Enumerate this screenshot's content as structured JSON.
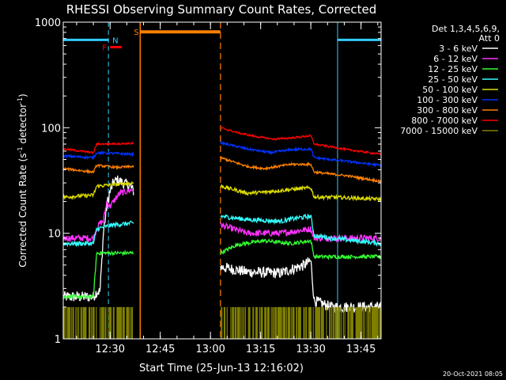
{
  "chart_data": {
    "type": "line",
    "title": "RHESSI Observing Summary Count Rates, Corrected",
    "xlabel": "Start Time (25-Jun-13 12:16:02)",
    "ylabel_main": "Corrected Count Rate (s",
    "ylabel_sup1": "-1",
    "ylabel_mid": " detector",
    "ylabel_sup2": "-1",
    "ylabel_end": ")",
    "ylog": true,
    "xlim": [
      0,
      95
    ],
    "ylim": [
      1,
      1000
    ],
    "x_unit": "minutes after 12:16:02",
    "xticks": [
      {
        "v": 14,
        "label": "12:30"
      },
      {
        "v": 29,
        "label": "12:45"
      },
      {
        "v": 44,
        "label": "13:00"
      },
      {
        "v": 59,
        "label": "13:15"
      },
      {
        "v": 74,
        "label": "13:30"
      },
      {
        "v": 89,
        "label": "13:45"
      }
    ],
    "yticks": [
      {
        "v": 1,
        "label": "1"
      },
      {
        "v": 10,
        "label": "10"
      },
      {
        "v": 100,
        "label": "100"
      },
      {
        "v": 1000,
        "label": "1000"
      }
    ],
    "legend": {
      "header1": "Det 1,3,4,5,6,9,",
      "header2": "Att 0",
      "placement": "right"
    },
    "series": [
      {
        "name": "3 - 6 keV",
        "color": "#ffffff",
        "noise": 0.12,
        "segments": [
          [
            [
              0,
              2.5
            ],
            [
              9,
              2.5
            ],
            [
              10,
              2.8
            ],
            [
              11,
              2.8
            ],
            [
              12,
              10
            ],
            [
              13,
              18
            ],
            [
              14,
              25
            ],
            [
              15,
              30
            ],
            [
              16,
              32
            ],
            [
              20,
              28
            ],
            [
              21,
              25
            ]
          ],
          [
            [
              47,
              4.8
            ],
            [
              55,
              4.3
            ],
            [
              65,
              4.2
            ],
            [
              72,
              5.0
            ],
            [
              74,
              5.5
            ],
            [
              75,
              2.3
            ],
            [
              80,
              2.0
            ],
            [
              95,
              2.0
            ]
          ]
        ]
      },
      {
        "name": "6 - 12 keV",
        "color": "#ff33ff",
        "noise": 0.07,
        "segments": [
          [
            [
              0,
              9.0
            ],
            [
              9,
              9.0
            ],
            [
              10,
              11
            ],
            [
              11,
              12.5
            ],
            [
              12,
              13
            ],
            [
              13,
              20
            ],
            [
              14,
              18
            ],
            [
              15,
              20
            ],
            [
              16,
              22
            ],
            [
              17,
              24
            ],
            [
              21,
              26
            ]
          ],
          [
            [
              47,
              12
            ],
            [
              55,
              10
            ],
            [
              65,
              10
            ],
            [
              74,
              11
            ],
            [
              75,
              9.0
            ],
            [
              95,
              9.0
            ]
          ]
        ]
      },
      {
        "name": "12 - 25 keV",
        "color": "#33ff33",
        "noise": 0.04,
        "segments": [
          [
            [
              0,
              2.5
            ],
            [
              9,
              2.5
            ],
            [
              10,
              6.5
            ],
            [
              21,
              6.5
            ]
          ],
          [
            [
              47,
              6.5
            ],
            [
              52,
              7.8
            ],
            [
              60,
              8.5
            ],
            [
              68,
              8.0
            ],
            [
              74,
              8.5
            ],
            [
              75,
              6.0
            ],
            [
              80,
              6.0
            ],
            [
              95,
              6.0
            ]
          ]
        ]
      },
      {
        "name": "25 - 50 keV",
        "color": "#33ffff",
        "noise": 0.05,
        "segments": [
          [
            [
              0,
              8.0
            ],
            [
              9,
              8.0
            ],
            [
              10,
              11
            ],
            [
              15,
              12
            ],
            [
              21,
              12.5
            ]
          ],
          [
            [
              47,
              14.5
            ],
            [
              55,
              13.5
            ],
            [
              65,
              13.0
            ],
            [
              70,
              14.0
            ],
            [
              74,
              14.5
            ],
            [
              75,
              9.5
            ],
            [
              80,
              9.0
            ],
            [
              95,
              8.0
            ]
          ]
        ]
      },
      {
        "name": "50 - 100 keV",
        "color": "#dddd00",
        "noise": 0.04,
        "segments": [
          [
            [
              0,
              22
            ],
            [
              9,
              23
            ],
            [
              10,
              28
            ],
            [
              16,
              29
            ],
            [
              21,
              30
            ]
          ],
          [
            [
              47,
              28
            ],
            [
              55,
              24
            ],
            [
              60,
              24.5
            ],
            [
              68,
              26
            ],
            [
              74,
              27
            ],
            [
              75,
              22
            ],
            [
              80,
              22
            ],
            [
              95,
              21
            ]
          ]
        ]
      },
      {
        "name": "100 - 300 keV",
        "color": "#0033ff",
        "noise": 0.025,
        "segments": [
          [
            [
              0,
              54
            ],
            [
              9,
              52
            ],
            [
              10,
              58
            ],
            [
              16,
              57
            ],
            [
              21,
              56
            ]
          ],
          [
            [
              47,
              72
            ],
            [
              55,
              63
            ],
            [
              62,
              58
            ],
            [
              68,
              62
            ],
            [
              74,
              63
            ],
            [
              75,
              52
            ],
            [
              85,
              48
            ],
            [
              95,
              44
            ]
          ]
        ]
      },
      {
        "name": "300 - 800 keV",
        "color": "#ff7f00",
        "noise": 0.025,
        "segments": [
          [
            [
              0,
              41
            ],
            [
              9,
              38
            ],
            [
              10,
              44
            ],
            [
              16,
              42
            ],
            [
              21,
              43
            ]
          ],
          [
            [
              47,
              52
            ],
            [
              55,
              43
            ],
            [
              60,
              41
            ],
            [
              68,
              45
            ],
            [
              74,
              45
            ],
            [
              75,
              38
            ],
            [
              85,
              35
            ],
            [
              95,
              31
            ]
          ]
        ]
      },
      {
        "name": "800 - 7000 keV",
        "color": "#ff0000",
        "noise": 0.02,
        "segments": [
          [
            [
              0,
              63
            ],
            [
              9,
              58
            ],
            [
              10,
              70
            ],
            [
              21,
              71
            ]
          ],
          [
            [
              47,
              100
            ],
            [
              52,
              90
            ],
            [
              58,
              82
            ],
            [
              63,
              78
            ],
            [
              68,
              80
            ],
            [
              74,
              84
            ],
            [
              75,
              70
            ],
            [
              85,
              62
            ],
            [
              95,
              56
            ]
          ]
        ]
      },
      {
        "name": "7000 - 15000 keV",
        "color": "#808000",
        "noise": 0,
        "segments": [
          [
            [
              0,
              1.7
            ],
            [
              21,
              1.7
            ]
          ],
          [
            [
              47,
              1.7
            ],
            [
              95,
              1.7
            ]
          ]
        ]
      }
    ],
    "markers": [
      {
        "label": "N",
        "color": "#33ccff",
        "y": 680
      },
      {
        "label": "F",
        "color": "#ff0000",
        "y": 580
      },
      {
        "label": "S",
        "color": "#ff7f00",
        "y": 810
      }
    ],
    "night_intervals": [
      [
        0,
        13.5
      ],
      [
        82,
        95
      ]
    ],
    "flare_interval": [
      14.0,
      17.5
    ],
    "saa_interval": [
      23,
      47
    ]
  },
  "footer": {
    "timestamp": "20-Oct-2021 08:05"
  }
}
